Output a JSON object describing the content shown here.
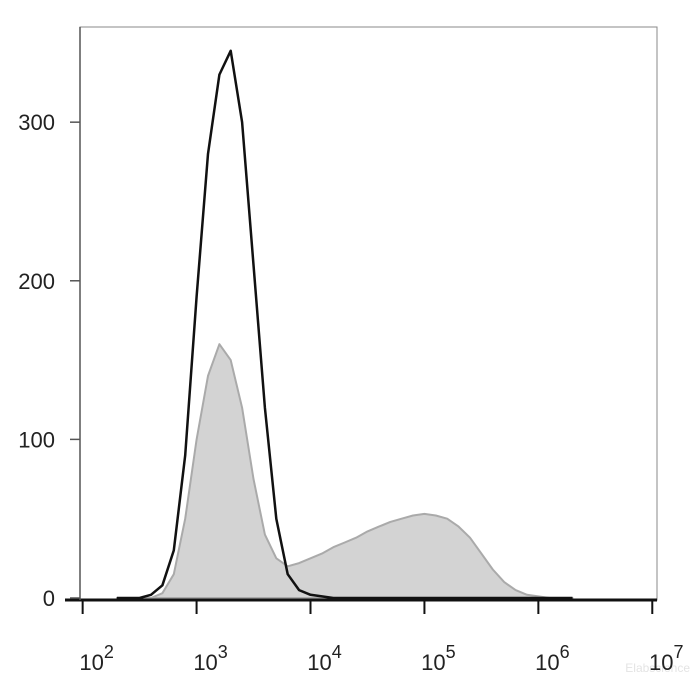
{
  "chart_data": {
    "type": "histogram-overlay",
    "x": [
      200,
      251,
      316,
      398,
      501,
      631,
      794,
      1000,
      1259,
      1585,
      1995,
      2512,
      3162,
      3981,
      5012,
      6310,
      7943,
      10000,
      12589,
      15849,
      19953,
      25119,
      31623,
      39811,
      50119,
      63096,
      79433,
      100000,
      125893,
      158489,
      199526,
      251189,
      316228,
      398107,
      501187,
      630957,
      794328,
      1000000,
      1258925,
      1584893,
      1995262
    ],
    "series": [
      {
        "color": "#aaaaaa",
        "fill": "#d3d3d3",
        "filled": true,
        "values": [
          0,
          0,
          0,
          0,
          3,
          15,
          50,
          100,
          140,
          160,
          150,
          120,
          75,
          40,
          25,
          20,
          22,
          25,
          28,
          32,
          35,
          38,
          42,
          45,
          48,
          50,
          52,
          53,
          52,
          50,
          45,
          38,
          28,
          18,
          10,
          5,
          2,
          1,
          0,
          0,
          0
        ]
      },
      {
        "color": "#111111",
        "filled": false,
        "values": [
          0,
          0,
          0,
          2,
          8,
          30,
          90,
          190,
          280,
          330,
          345,
          300,
          210,
          120,
          50,
          15,
          5,
          2,
          1,
          0,
          0,
          0,
          0,
          0,
          0,
          0,
          0,
          0,
          0,
          0,
          0,
          0,
          0,
          0,
          0,
          0,
          0,
          0,
          0,
          0,
          0
        ]
      }
    ],
    "xlog": true,
    "xlim": [
      70,
      11000000
    ],
    "xticks": [
      {
        "value": 100,
        "label": "10",
        "exponent": "2"
      },
      {
        "value": 1000,
        "label": "10",
        "exponent": "3"
      },
      {
        "value": 10000,
        "label": "10",
        "exponent": "4"
      },
      {
        "value": 100000,
        "label": "10",
        "exponent": "5"
      },
      {
        "value": 1000000,
        "label": "10",
        "exponent": "6"
      },
      {
        "value": 10000000,
        "label": "10",
        "exponent": "7"
      }
    ],
    "ylim": [
      0,
      360
    ],
    "yticks": [
      0,
      100,
      200,
      300
    ],
    "grid": false,
    "watermark": "Elabscience"
  }
}
